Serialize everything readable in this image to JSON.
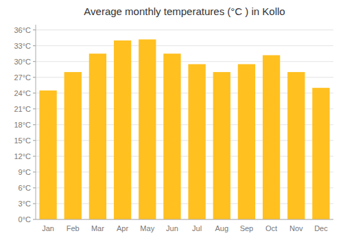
{
  "chart_data": {
    "type": "bar",
    "title": "Average monthly temperatures (°C ) in Kollo",
    "categories": [
      "Jan",
      "Feb",
      "Mar",
      "Apr",
      "May",
      "Jun",
      "Jul",
      "Aug",
      "Sep",
      "Oct",
      "Nov",
      "Dec"
    ],
    "values": [
      24.5,
      28.0,
      31.5,
      34.0,
      34.2,
      31.5,
      29.5,
      28.0,
      29.5,
      31.2,
      28.0,
      25.0
    ],
    "color": "#FFC020",
    "ylim": [
      0,
      37
    ],
    "yticks": [
      {
        "value": 0,
        "label": "0°C"
      },
      {
        "value": 3,
        "label": "3°C"
      },
      {
        "value": 6,
        "label": "6°C"
      },
      {
        "value": 9,
        "label": "9°C"
      },
      {
        "value": 12,
        "label": "12°C"
      },
      {
        "value": 15,
        "label": "15°C"
      },
      {
        "value": 18,
        "label": "18°C"
      },
      {
        "value": 21,
        "label": "21°C"
      },
      {
        "value": 24,
        "label": "24°C"
      },
      {
        "value": 27,
        "label": "27°C"
      },
      {
        "value": 30,
        "label": "30°C"
      },
      {
        "value": 33,
        "label": "33°C"
      },
      {
        "value": 36,
        "label": "36°C"
      }
    ],
    "grid": true
  }
}
